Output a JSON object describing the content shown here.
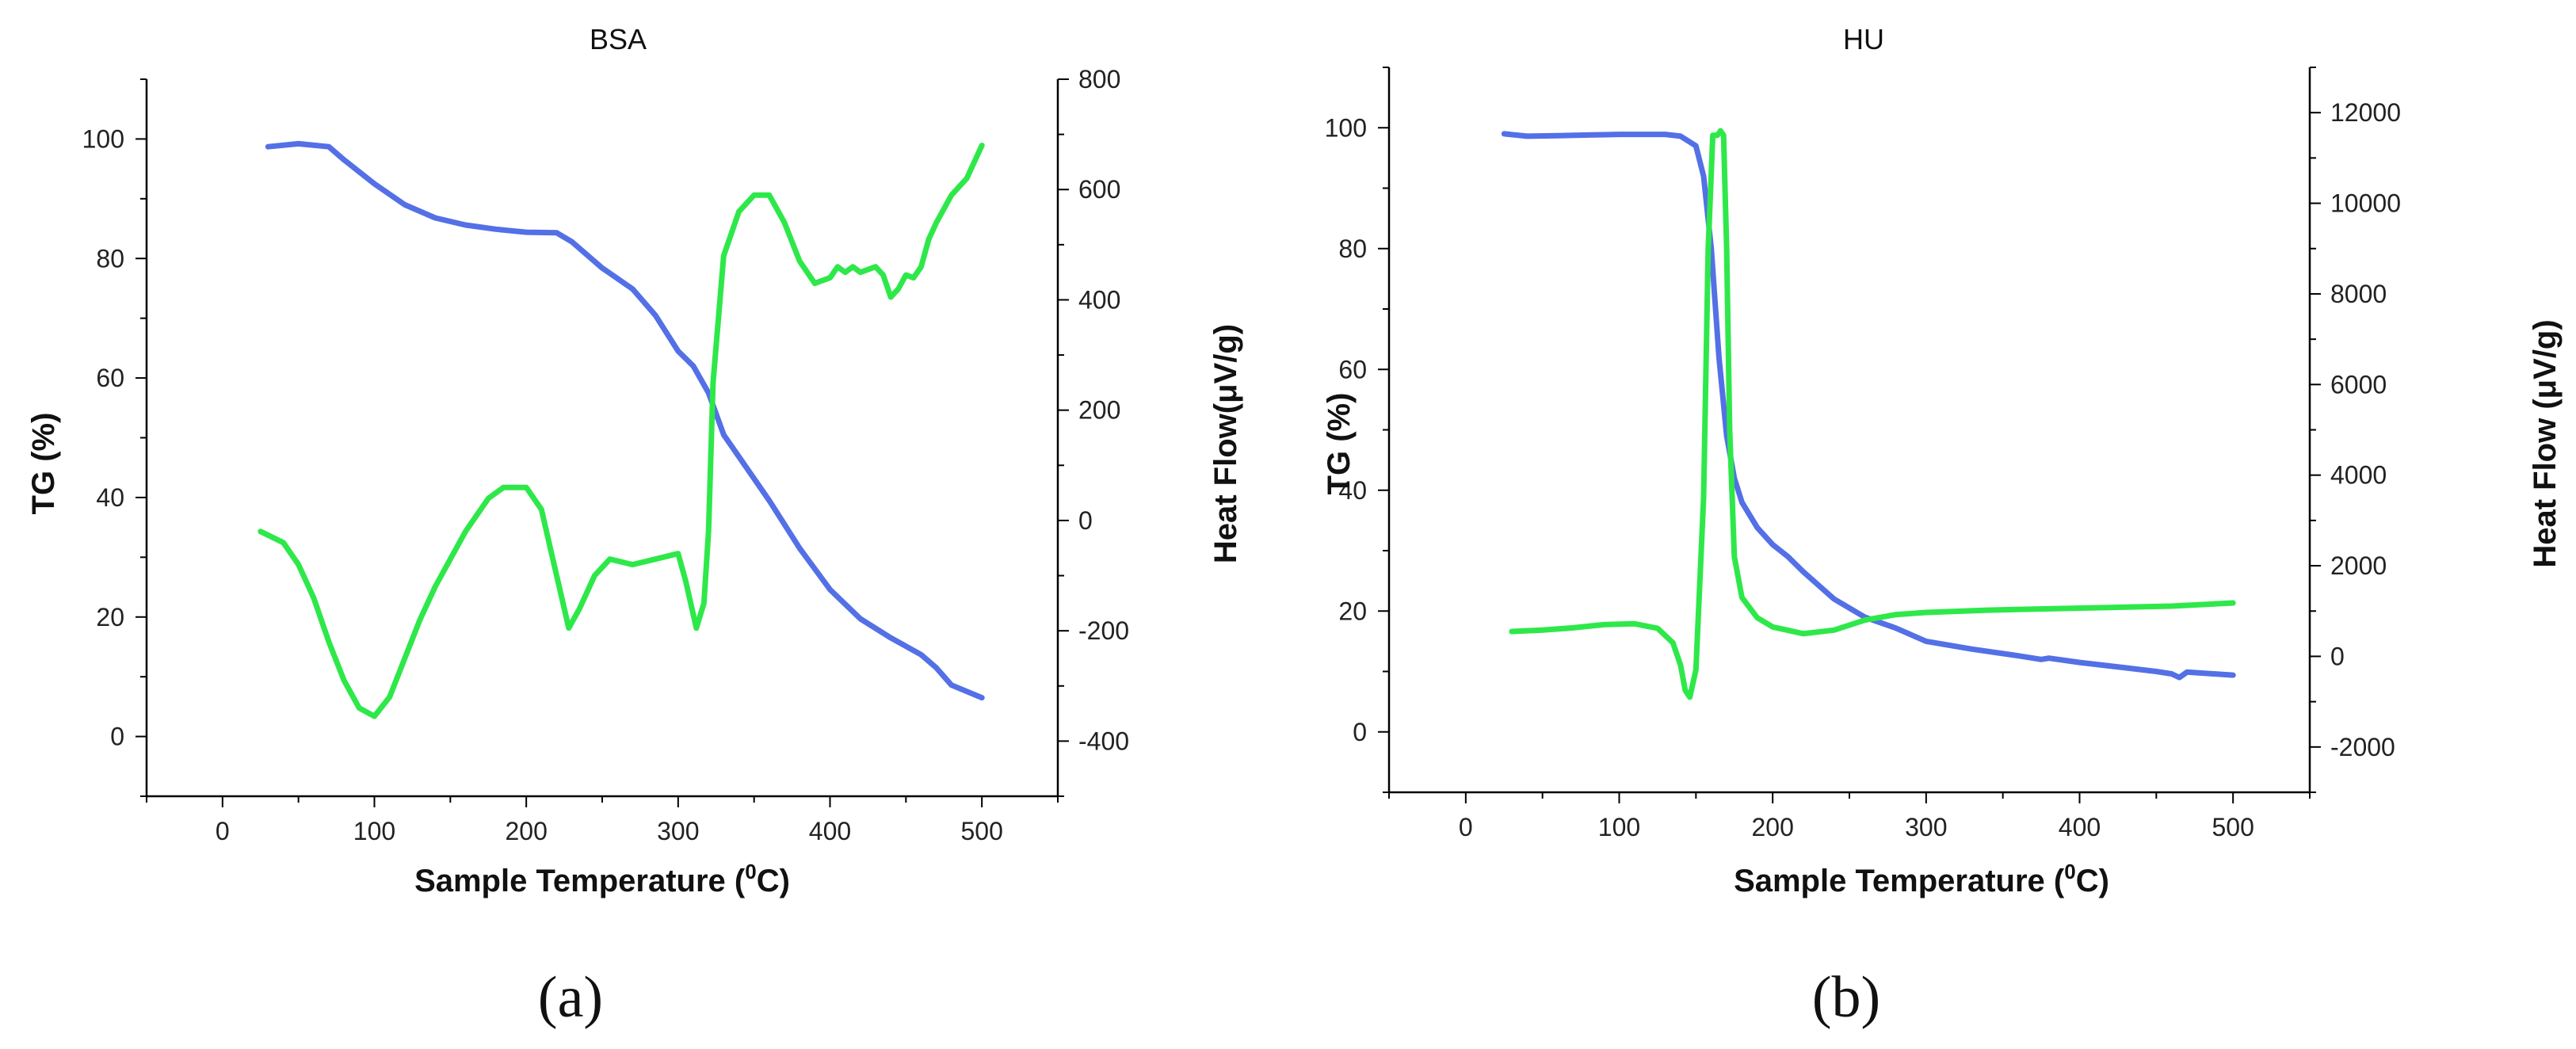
{
  "figure": {
    "panel_labels": [
      "(a)",
      "(b)"
    ]
  },
  "colors": {
    "tg": "#5470e6",
    "heatflow": "#2ee84a",
    "axis": "#000000"
  },
  "chart_data": [
    {
      "type": "line",
      "title": "BSA",
      "xlabel": "Sample Temperature (",
      "xlabel_sup": "0",
      "xlabel_end": "C)",
      "ylabel": "TG (%)",
      "y2label": "Heat Flow(μV/g)",
      "xlim": [
        -50,
        550
      ],
      "ylim": [
        -10,
        110
      ],
      "y2lim": [
        -500,
        800
      ],
      "xticks": [
        0,
        100,
        200,
        300,
        400,
        500
      ],
      "yticks": [
        0,
        20,
        40,
        60,
        80,
        100
      ],
      "y2ticks": [
        -400,
        -200,
        0,
        200,
        400,
        600,
        800
      ],
      "grid": false,
      "series": [
        {
          "name": "TG",
          "axis": "left",
          "color": "#5470e6",
          "x": [
            30,
            50,
            70,
            80,
            100,
            120,
            140,
            160,
            180,
            200,
            220,
            230,
            250,
            270,
            285,
            300,
            310,
            320,
            330,
            345,
            360,
            380,
            400,
            420,
            440,
            460,
            470,
            480,
            500
          ],
          "y": [
            98.7,
            99.2,
            98.7,
            96.5,
            92.5,
            89.0,
            86.8,
            85.6,
            84.9,
            84.4,
            84.3,
            82.8,
            78.4,
            74.9,
            70.5,
            64.5,
            62.0,
            57.5,
            50.5,
            45.0,
            39.5,
            31.5,
            24.6,
            19.7,
            16.5,
            13.7,
            11.5,
            8.6,
            6.5
          ]
        },
        {
          "name": "Heat Flow",
          "axis": "right",
          "color": "#2ee84a",
          "x": [
            25,
            40,
            50,
            60,
            70,
            80,
            90,
            100,
            110,
            120,
            130,
            140,
            160,
            175,
            185,
            200,
            210,
            220,
            228,
            235,
            245,
            255,
            270,
            285,
            300,
            305,
            312,
            317,
            320,
            323,
            330,
            340,
            350,
            360,
            370,
            380,
            390,
            400,
            405,
            410,
            415,
            420,
            430,
            435,
            440,
            445,
            450,
            455,
            460,
            465,
            470,
            480,
            490,
            500
          ],
          "y": [
            -20,
            -40,
            -80,
            -140,
            -220,
            -290,
            -340,
            -355,
            -320,
            -250,
            -180,
            -120,
            -20,
            40,
            60,
            60,
            20,
            -100,
            -195,
            -160,
            -100,
            -70,
            -80,
            -70,
            -60,
            -110,
            -195,
            -150,
            -20,
            250,
            480,
            560,
            590,
            590,
            540,
            470,
            430,
            440,
            460,
            450,
            460,
            450,
            460,
            445,
            405,
            420,
            445,
            440,
            460,
            510,
            540,
            590,
            620,
            680
          ]
        }
      ]
    },
    {
      "type": "line",
      "title": "HU",
      "xlabel": "Sample Temperature (",
      "xlabel_sup": "0",
      "xlabel_end": "C)",
      "ylabel": "TG (%)",
      "y2label": "Heat Flow (μV/g)",
      "xlim": [
        -50,
        550
      ],
      "ylim": [
        -10,
        110
      ],
      "y2lim": [
        -3000,
        13000
      ],
      "xticks": [
        0,
        100,
        200,
        300,
        400,
        500
      ],
      "yticks": [
        0,
        20,
        40,
        60,
        80,
        100
      ],
      "y2ticks": [
        -2000,
        0,
        2000,
        4000,
        6000,
        8000,
        10000,
        12000
      ],
      "grid": false,
      "series": [
        {
          "name": "TG",
          "axis": "left",
          "color": "#5470e6",
          "x": [
            25,
            40,
            60,
            80,
            100,
            120,
            130,
            140,
            150,
            155,
            160,
            165,
            170,
            175,
            180,
            190,
            200,
            210,
            220,
            240,
            260,
            280,
            300,
            330,
            360,
            375,
            380,
            400,
            430,
            450,
            460,
            465,
            470,
            500
          ],
          "y": [
            99.0,
            98.6,
            98.7,
            98.8,
            98.9,
            98.9,
            98.9,
            98.6,
            97.0,
            92.0,
            80.0,
            62.0,
            49.0,
            42.0,
            38.0,
            33.8,
            31.0,
            29.0,
            26.5,
            22.0,
            19.0,
            17.2,
            15.0,
            13.7,
            12.6,
            12.0,
            12.2,
            11.5,
            10.6,
            10.0,
            9.6,
            9.0,
            9.9,
            9.4
          ]
        },
        {
          "name": "Heat Flow",
          "axis": "right",
          "color": "#2ee84a",
          "x": [
            30,
            50,
            70,
            90,
            110,
            125,
            135,
            140,
            143,
            146,
            150,
            155,
            158,
            161,
            164,
            166,
            168,
            170,
            172,
            175,
            180,
            190,
            200,
            220,
            240,
            260,
            280,
            300,
            340,
            380,
            420,
            460,
            500
          ],
          "y": [
            550,
            580,
            630,
            700,
            720,
            620,
            300,
            -200,
            -750,
            -900,
            -300,
            3500,
            9000,
            11500,
            11500,
            11600,
            11500,
            9000,
            5000,
            2200,
            1300,
            850,
            650,
            500,
            580,
            800,
            920,
            970,
            1020,
            1050,
            1080,
            1110,
            1180
          ]
        }
      ]
    }
  ]
}
